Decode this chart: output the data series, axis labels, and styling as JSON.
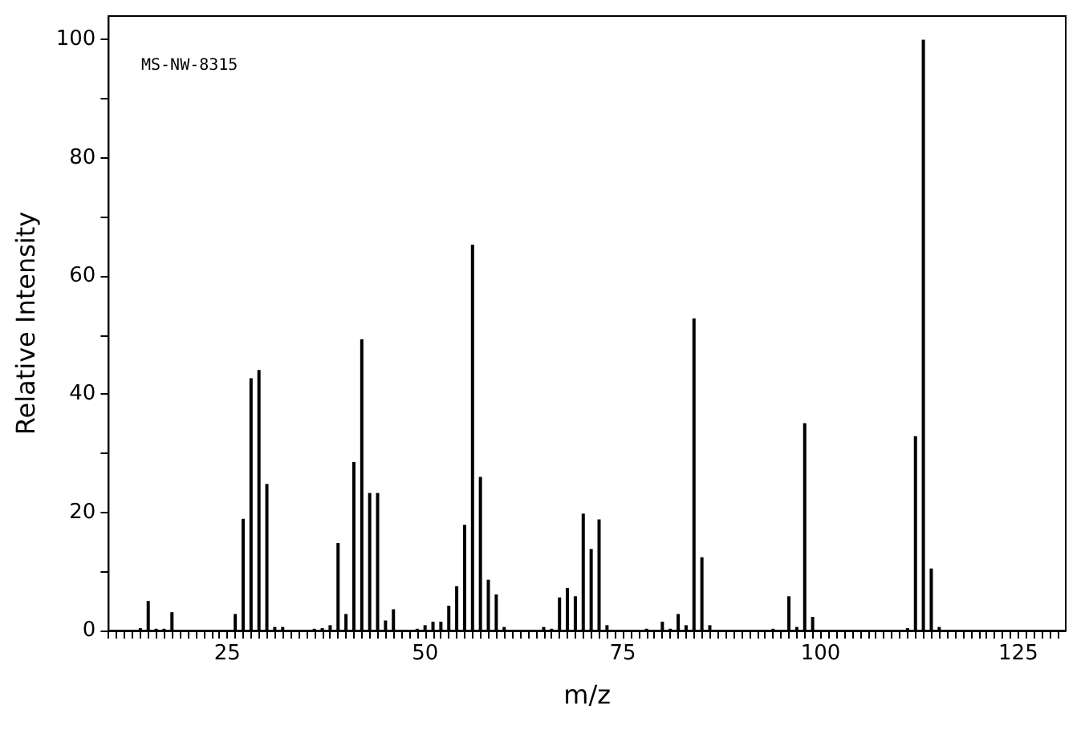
{
  "chart_data": {
    "type": "bar",
    "xlabel": "m/z",
    "ylabel": "Relative Intensity",
    "annotations": [
      "MS-NW-8315"
    ],
    "x": [
      14,
      15,
      16,
      17,
      18,
      26,
      27,
      28,
      29,
      30,
      31,
      32,
      36,
      37,
      38,
      39,
      40,
      41,
      42,
      43,
      44,
      45,
      46,
      49,
      50,
      51,
      52,
      53,
      54,
      55,
      56,
      57,
      58,
      59,
      60,
      65,
      66,
      67,
      68,
      69,
      70,
      71,
      72,
      73,
      78,
      80,
      81,
      82,
      83,
      84,
      85,
      86,
      94,
      96,
      97,
      98,
      99,
      111,
      112,
      113,
      114,
      115
    ],
    "values": [
      0.4,
      5,
      0.3,
      0.3,
      3.1,
      2.8,
      18.9,
      42.7,
      44.1,
      24.8,
      0.6,
      0.6,
      0.3,
      0.4,
      0.9,
      14.8,
      2.8,
      28.5,
      49.3,
      23.3,
      23.3,
      1.7,
      3.6,
      0.3,
      0.9,
      1.5,
      1.5,
      4.2,
      7.5,
      17.9,
      65.3,
      26,
      8.6,
      6.1,
      0.6,
      0.6,
      0.3,
      5.6,
      7.2,
      5.8,
      19.8,
      13.8,
      18.8,
      0.9,
      0.3,
      1.5,
      0.3,
      2.8,
      0.9,
      52.8,
      12.4,
      0.9,
      0.3,
      5.8,
      0.6,
      35.1,
      2.3,
      0.4,
      32.9,
      100,
      10.5,
      0.6
    ],
    "color": "#000000",
    "grid": false,
    "xlim": [
      10,
      131
    ],
    "ylim": [
      0,
      104
    ],
    "xticks": [
      {
        "value": 10,
        "label": null
      },
      {
        "value": 11,
        "label": null
      },
      {
        "value": 12,
        "label": null
      },
      {
        "value": 13,
        "label": null
      },
      {
        "value": 14,
        "label": null
      },
      {
        "value": 15,
        "label": null
      },
      {
        "value": 16,
        "label": null
      },
      {
        "value": 17,
        "label": null
      },
      {
        "value": 18,
        "label": null
      },
      {
        "value": 19,
        "label": null
      },
      {
        "value": 20,
        "label": null
      },
      {
        "value": 21,
        "label": null
      },
      {
        "value": 22,
        "label": null
      },
      {
        "value": 23,
        "label": null
      },
      {
        "value": 24,
        "label": null
      },
      25,
      {
        "value": 26,
        "label": null
      },
      {
        "value": 27,
        "label": null
      },
      {
        "value": 28,
        "label": null
      },
      {
        "value": 29,
        "label": null
      },
      {
        "value": 30,
        "label": null
      },
      {
        "value": 31,
        "label": null
      },
      {
        "value": 32,
        "label": null
      },
      {
        "value": 33,
        "label": null
      },
      {
        "value": 34,
        "label": null
      },
      {
        "value": 35,
        "label": null
      },
      {
        "value": 36,
        "label": null
      },
      {
        "value": 37,
        "label": null
      },
      {
        "value": 38,
        "label": null
      },
      {
        "value": 39,
        "label": null
      },
      {
        "value": 40,
        "label": null
      },
      {
        "value": 41,
        "label": null
      },
      {
        "value": 42,
        "label": null
      },
      {
        "value": 43,
        "label": null
      },
      {
        "value": 44,
        "label": null
      },
      {
        "value": 45,
        "label": null
      },
      {
        "value": 46,
        "label": null
      },
      {
        "value": 47,
        "label": null
      },
      {
        "value": 48,
        "label": null
      },
      {
        "value": 49,
        "label": null
      },
      50,
      {
        "value": 51,
        "label": null
      },
      {
        "value": 52,
        "label": null
      },
      {
        "value": 53,
        "label": null
      },
      {
        "value": 54,
        "label": null
      },
      {
        "value": 55,
        "label": null
      },
      {
        "value": 56,
        "label": null
      },
      {
        "value": 57,
        "label": null
      },
      {
        "value": 58,
        "label": null
      },
      {
        "value": 59,
        "label": null
      },
      {
        "value": 60,
        "label": null
      },
      {
        "value": 61,
        "label": null
      },
      {
        "value": 62,
        "label": null
      },
      {
        "value": 63,
        "label": null
      },
      {
        "value": 64,
        "label": null
      },
      {
        "value": 65,
        "label": null
      },
      {
        "value": 66,
        "label": null
      },
      {
        "value": 67,
        "label": null
      },
      {
        "value": 68,
        "label": null
      },
      {
        "value": 69,
        "label": null
      },
      {
        "value": 70,
        "label": null
      },
      {
        "value": 71,
        "label": null
      },
      {
        "value": 72,
        "label": null
      },
      {
        "value": 73,
        "label": null
      },
      {
        "value": 74,
        "label": null
      },
      75,
      {
        "value": 76,
        "label": null
      },
      {
        "value": 77,
        "label": null
      },
      {
        "value": 78,
        "label": null
      },
      {
        "value": 79,
        "label": null
      },
      {
        "value": 80,
        "label": null
      },
      {
        "value": 81,
        "label": null
      },
      {
        "value": 82,
        "label": null
      },
      {
        "value": 83,
        "label": null
      },
      {
        "value": 84,
        "label": null
      },
      {
        "value": 85,
        "label": null
      },
      {
        "value": 86,
        "label": null
      },
      {
        "value": 87,
        "label": null
      },
      {
        "value": 88,
        "label": null
      },
      {
        "value": 89,
        "label": null
      },
      {
        "value": 90,
        "label": null
      },
      {
        "value": 91,
        "label": null
      },
      {
        "value": 92,
        "label": null
      },
      {
        "value": 93,
        "label": null
      },
      {
        "value": 94,
        "label": null
      },
      {
        "value": 95,
        "label": null
      },
      {
        "value": 96,
        "label": null
      },
      {
        "value": 97,
        "label": null
      },
      {
        "value": 98,
        "label": null
      },
      {
        "value": 99,
        "label": null
      },
      100,
      {
        "value": 101,
        "label": null
      },
      {
        "value": 102,
        "label": null
      },
      {
        "value": 103,
        "label": null
      },
      {
        "value": 104,
        "label": null
      },
      {
        "value": 105,
        "label": null
      },
      {
        "value": 106,
        "label": null
      },
      {
        "value": 107,
        "label": null
      },
      {
        "value": 108,
        "label": null
      },
      {
        "value": 109,
        "label": null
      },
      {
        "value": 110,
        "label": null
      },
      {
        "value": 111,
        "label": null
      },
      {
        "value": 112,
        "label": null
      },
      {
        "value": 113,
        "label": null
      },
      {
        "value": 114,
        "label": null
      },
      {
        "value": 115,
        "label": null
      },
      {
        "value": 116,
        "label": null
      },
      {
        "value": 117,
        "label": null
      },
      {
        "value": 118,
        "label": null
      },
      {
        "value": 119,
        "label": null
      },
      {
        "value": 120,
        "label": null
      },
      {
        "value": 121,
        "label": null
      },
      {
        "value": 122,
        "label": null
      },
      {
        "value": 123,
        "label": null
      },
      {
        "value": 124,
        "label": null
      },
      125,
      {
        "value": 126,
        "label": null
      },
      {
        "value": 127,
        "label": null
      },
      {
        "value": 128,
        "label": null
      },
      {
        "value": 129,
        "label": null
      },
      {
        "value": 130,
        "label": null
      }
    ],
    "yticks": [
      0,
      {
        "value": 10,
        "label": null
      },
      20,
      {
        "value": 30,
        "label": null
      },
      40,
      {
        "value": 50,
        "label": null
      },
      60,
      {
        "value": 70,
        "label": null
      },
      80,
      {
        "value": 90,
        "label": null
      },
      100
    ]
  }
}
